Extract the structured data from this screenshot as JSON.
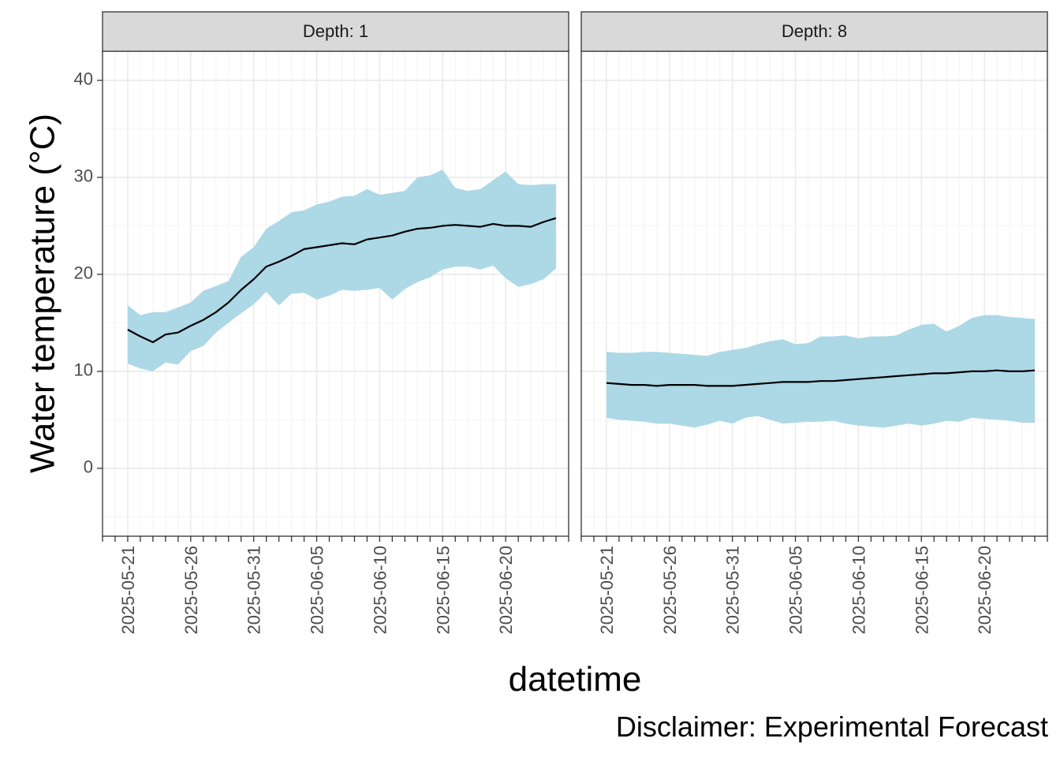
{
  "chart_data": {
    "type": "area",
    "ylabel": "Water temperature (°C)",
    "xlabel": "datetime",
    "caption": "Disclaimer: Experimental Forecast",
    "ylim": [
      -7,
      43
    ],
    "yticks": [
      0,
      10,
      20,
      30,
      40
    ],
    "x_start": "2025-05-19",
    "x_end": "2025-06-25",
    "x_tick_labels": [
      "2025-05-21",
      "2025-05-26",
      "2025-05-31",
      "2025-06-05",
      "2025-06-10",
      "2025-06-15",
      "2025-06-20"
    ],
    "grid": true,
    "band_color": "#add8e6",
    "line_color": "#000000",
    "panels": [
      {
        "title": "Depth: 1",
        "x": [
          "2025-05-21",
          "2025-05-22",
          "2025-05-23",
          "2025-05-24",
          "2025-05-25",
          "2025-05-26",
          "2025-05-27",
          "2025-05-28",
          "2025-05-29",
          "2025-05-30",
          "2025-05-31",
          "2025-06-01",
          "2025-06-02",
          "2025-06-03",
          "2025-06-04",
          "2025-06-05",
          "2025-06-06",
          "2025-06-07",
          "2025-06-08",
          "2025-06-09",
          "2025-06-10",
          "2025-06-11",
          "2025-06-12",
          "2025-06-13",
          "2025-06-14",
          "2025-06-15",
          "2025-06-16",
          "2025-06-17",
          "2025-06-18",
          "2025-06-19",
          "2025-06-20",
          "2025-06-21",
          "2025-06-22",
          "2025-06-23",
          "2025-06-24"
        ],
        "mean": [
          14.3,
          13.6,
          13.0,
          13.8,
          14.0,
          14.7,
          15.3,
          16.1,
          17.1,
          18.4,
          19.5,
          20.8,
          21.3,
          21.9,
          22.6,
          22.8,
          23.0,
          23.2,
          23.1,
          23.6,
          23.8,
          24.0,
          24.4,
          24.7,
          24.8,
          25.0,
          25.1,
          25.0,
          24.9,
          25.2,
          25.0,
          25.0,
          24.9,
          25.4,
          25.8
        ],
        "upper": [
          16.8,
          15.8,
          16.1,
          16.1,
          16.6,
          17.1,
          18.3,
          18.8,
          19.3,
          21.8,
          22.8,
          24.7,
          25.5,
          26.4,
          26.6,
          27.2,
          27.5,
          28.0,
          28.1,
          28.8,
          28.2,
          28.4,
          28.6,
          30.0,
          30.2,
          30.8,
          28.9,
          28.6,
          28.8,
          29.7,
          30.6,
          29.3,
          29.2,
          29.3,
          29.3
        ],
        "lower": [
          10.8,
          10.3,
          10.0,
          10.9,
          10.7,
          12.1,
          12.6,
          14.0,
          15.0,
          16.0,
          16.9,
          18.2,
          16.8,
          18.0,
          18.1,
          17.4,
          17.8,
          18.4,
          18.3,
          18.4,
          18.6,
          17.4,
          18.5,
          19.2,
          19.7,
          20.5,
          20.8,
          20.8,
          20.5,
          20.9,
          19.6,
          18.7,
          19.0,
          19.5,
          20.6
        ]
      },
      {
        "title": "Depth: 8",
        "x": [
          "2025-05-21",
          "2025-05-22",
          "2025-05-23",
          "2025-05-24",
          "2025-05-25",
          "2025-05-26",
          "2025-05-27",
          "2025-05-28",
          "2025-05-29",
          "2025-05-30",
          "2025-05-31",
          "2025-06-01",
          "2025-06-02",
          "2025-06-03",
          "2025-06-04",
          "2025-06-05",
          "2025-06-06",
          "2025-06-07",
          "2025-06-08",
          "2025-06-09",
          "2025-06-10",
          "2025-06-11",
          "2025-06-12",
          "2025-06-13",
          "2025-06-14",
          "2025-06-15",
          "2025-06-16",
          "2025-06-17",
          "2025-06-18",
          "2025-06-19",
          "2025-06-20",
          "2025-06-21",
          "2025-06-22",
          "2025-06-23",
          "2025-06-24"
        ],
        "mean": [
          8.8,
          8.7,
          8.6,
          8.6,
          8.5,
          8.6,
          8.6,
          8.6,
          8.5,
          8.5,
          8.5,
          8.6,
          8.7,
          8.8,
          8.9,
          8.9,
          8.9,
          9.0,
          9.0,
          9.1,
          9.2,
          9.3,
          9.4,
          9.5,
          9.6,
          9.7,
          9.8,
          9.8,
          9.9,
          10.0,
          10.0,
          10.1,
          10.0,
          10.0,
          10.1
        ],
        "upper": [
          12.0,
          11.9,
          11.9,
          12.0,
          12.0,
          11.9,
          11.8,
          11.7,
          11.6,
          12.0,
          12.2,
          12.4,
          12.8,
          13.1,
          13.3,
          12.8,
          12.9,
          13.6,
          13.6,
          13.7,
          13.4,
          13.6,
          13.6,
          13.7,
          14.3,
          14.8,
          14.9,
          14.1,
          14.7,
          15.5,
          15.8,
          15.8,
          15.6,
          15.5,
          15.4
        ],
        "lower": [
          5.2,
          5.0,
          4.9,
          4.8,
          4.6,
          4.6,
          4.4,
          4.2,
          4.5,
          4.9,
          4.6,
          5.2,
          5.4,
          5.0,
          4.6,
          4.7,
          4.8,
          4.8,
          4.9,
          4.6,
          4.4,
          4.3,
          4.2,
          4.4,
          4.6,
          4.4,
          4.6,
          4.9,
          4.8,
          5.2,
          5.1,
          5.0,
          4.9,
          4.7,
          4.7
        ]
      }
    ]
  }
}
